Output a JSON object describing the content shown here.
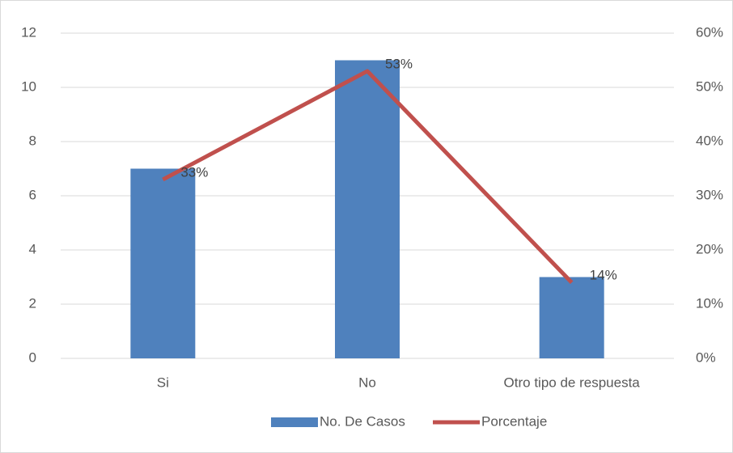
{
  "chart_data": {
    "type": "bar",
    "categories": [
      "Si",
      "No",
      "Otro tipo de respuesta"
    ],
    "series": [
      {
        "name": "No. De Casos",
        "color": "#4f81bd",
        "values": [
          7,
          11,
          3
        ]
      },
      {
        "name": "Porcentaje",
        "color": "#c0504d",
        "type": "line",
        "axis": "y2",
        "values": [
          33,
          53,
          14
        ],
        "value_labels": [
          "33%",
          "53%",
          "14%"
        ]
      }
    ],
    "ylim": [
      0,
      12
    ],
    "yticks": [
      0,
      2,
      4,
      6,
      8,
      10,
      12
    ],
    "y2lim": [
      0,
      60
    ],
    "y2ticks": [
      {
        "value": 0,
        "label": "0%"
      },
      {
        "value": 10,
        "label": "10%"
      },
      {
        "value": 20,
        "label": "20%"
      },
      {
        "value": 30,
        "label": "30%"
      },
      {
        "value": 40,
        "label": "40%"
      },
      {
        "value": 50,
        "label": "50%"
      },
      {
        "value": 60,
        "label": "60%"
      }
    ],
    "grid": true,
    "legend": "bottom"
  }
}
